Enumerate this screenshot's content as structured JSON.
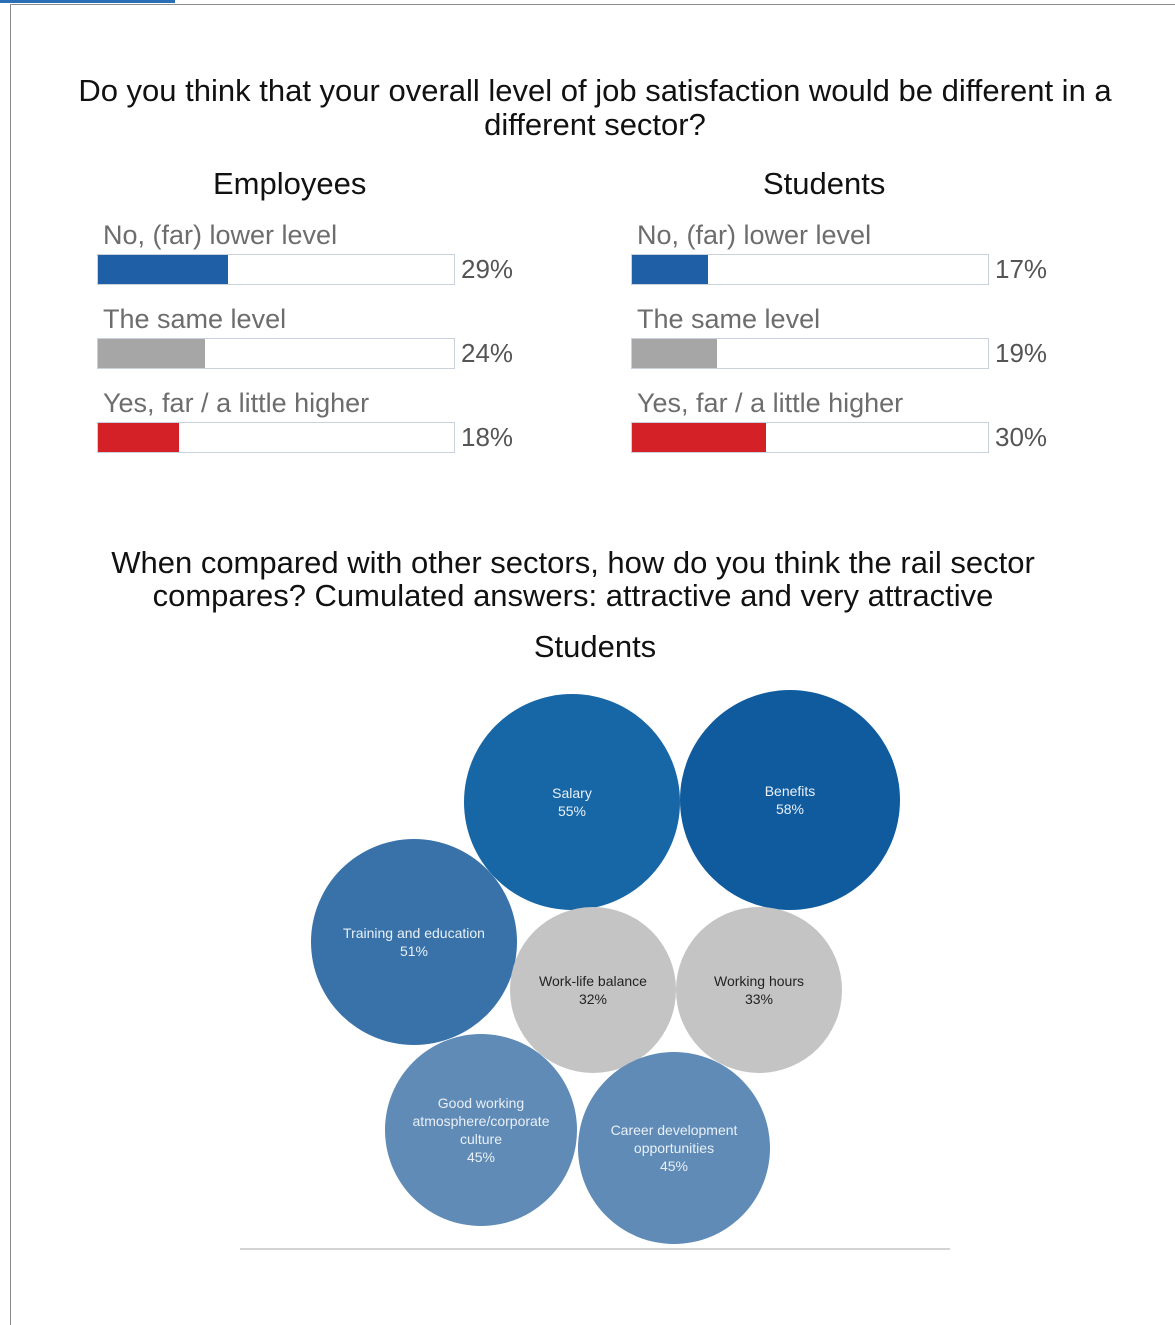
{
  "chart_data": [
    {
      "type": "bar",
      "title": "Do you think that your overall level of job satisfaction would be different in a different sector?",
      "panels": [
        {
          "title": "Employees",
          "categories": [
            "No, (far) lower level",
            "The same level",
            "Yes, far / a little higher"
          ],
          "values": [
            29,
            24,
            18
          ],
          "value_labels": [
            "29%",
            "24%",
            "18%"
          ],
          "colors": [
            "#1f5fa6",
            "#a6a6a6",
            "#d42027"
          ],
          "xlim": [
            0,
            100
          ]
        },
        {
          "title": "Students",
          "categories": [
            "No, (far) lower level",
            "The same level",
            "Yes, far / a little higher"
          ],
          "values": [
            17,
            19,
            30
          ],
          "value_labels": [
            "17%",
            "19%",
            "30%"
          ],
          "colors": [
            "#1f5fa6",
            "#a6a6a6",
            "#d42027"
          ],
          "xlim": [
            0,
            100
          ]
        }
      ]
    },
    {
      "type": "bubble",
      "title": "When compared with other sectors, how do you think the rail sector compares? Cumulated answers: attractive and very attractive",
      "subtitle": "Students",
      "items": [
        {
          "label": "Salary",
          "value": 55,
          "value_label": "55%",
          "color": "#1766a6"
        },
        {
          "label": "Benefits",
          "value": 58,
          "value_label": "58%",
          "color": "#0f5b9e"
        },
        {
          "label": "Training and education",
          "value": 51,
          "value_label": "51%",
          "color": "#3872a8"
        },
        {
          "label": "Work-life balance",
          "value": 32,
          "value_label": "32%",
          "color": "#c4c4c4"
        },
        {
          "label": "Working hours",
          "value": 33,
          "value_label": "33%",
          "color": "#c4c4c4"
        },
        {
          "label": "Good working atmosphere/corporate culture",
          "value": 45,
          "value_label": "45%",
          "color": "#5f8bb6"
        },
        {
          "label": "Career development opportunities",
          "value": 45,
          "value_label": "45%",
          "color": "#5f8bb6"
        }
      ]
    }
  ]
}
